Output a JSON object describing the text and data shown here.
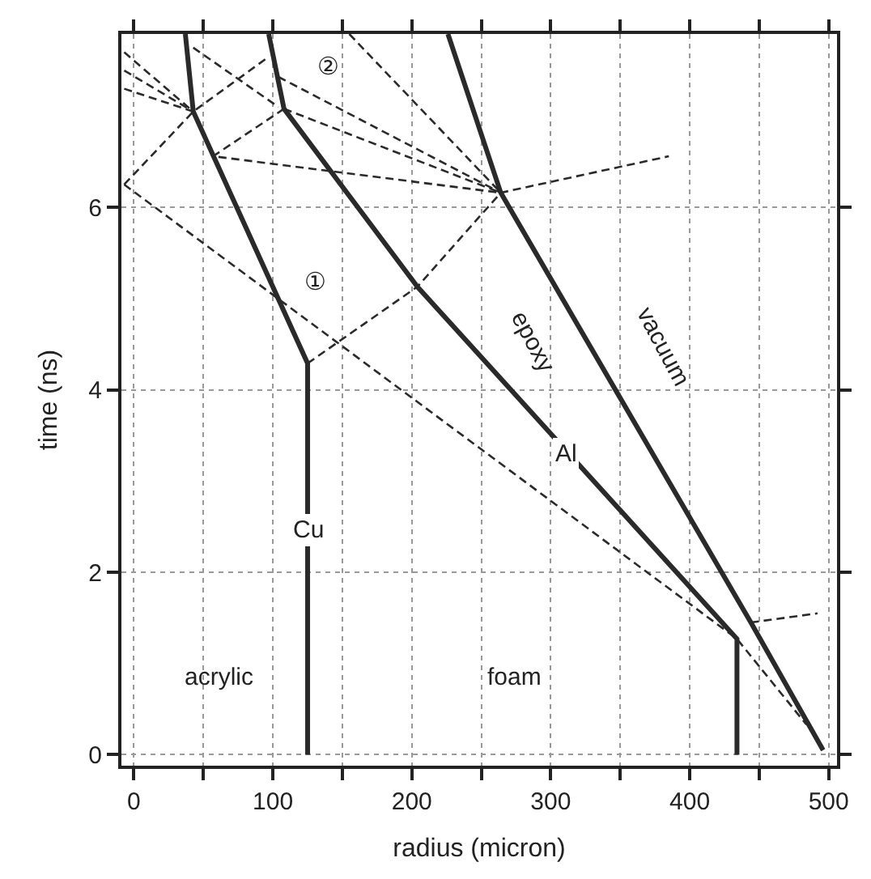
{
  "chart_data": {
    "type": "line",
    "xlabel": "radius (micron)",
    "ylabel": "time (ns)",
    "xlim": [
      -9,
      506
    ],
    "ylim": [
      -0.12,
      7.9
    ],
    "xticks": [
      0,
      {
        "value": 50,
        "label": null
      },
      100,
      {
        "value": 150,
        "label": null
      },
      200,
      {
        "value": 250,
        "label": null
      },
      300,
      {
        "value": 350,
        "label": null
      },
      400,
      {
        "value": 450,
        "label": null
      },
      500
    ],
    "yticks": [
      0,
      2,
      4,
      6
    ],
    "grid": true,
    "marker": "none",
    "series": [
      {
        "color": "#2a2a2a",
        "line_style": "solid",
        "x": [
          125,
          125,
          42.7,
          37
        ],
        "values": [
          0,
          4.29,
          7.05,
          7.9
        ]
      },
      {
        "color": "#2a2a2a",
        "line_style": "solid",
        "x": [
          434,
          434,
          204,
          108,
          97
        ],
        "values": [
          0,
          1.27,
          5.13,
          7.08,
          7.9
        ]
      },
      {
        "color": "#2a2a2a",
        "line_style": "solid",
        "x": [
          496,
          444,
          264,
          226
        ],
        "values": [
          0.05,
          1.45,
          6.16,
          7.9
        ]
      },
      {
        "color": "#2a2a2a",
        "line_style": "dashed",
        "x": [
          -7,
          434,
          484
        ],
        "values": [
          6.25,
          1.27,
          0.33
        ]
      },
      {
        "color": "#2a2a2a",
        "line_style": "dashed",
        "x": [
          125,
          204,
          264,
          385
        ],
        "values": [
          4.29,
          5.13,
          6.16,
          6.56
        ]
      },
      {
        "color": "#2a2a2a",
        "line_style": "dashed",
        "x": [
          444,
          492
        ],
        "values": [
          1.45,
          1.55
        ]
      },
      {
        "color": "#2a2a2a",
        "line_style": "dashed",
        "x": [
          -7,
          42.7,
          97
        ],
        "values": [
          6.25,
          7.05,
          7.65
        ]
      },
      {
        "color": "#2a2a2a",
        "line_style": "dashed",
        "x": [
          108,
          264
        ],
        "values": [
          7.08,
          6.16
        ]
      },
      {
        "color": "#2a2a2a",
        "line_style": "dashed",
        "x": [
          104,
          264
        ],
        "values": [
          7.43,
          6.16
        ]
      },
      {
        "color": "#2a2a2a",
        "line_style": "dashed",
        "x": [
          155,
          264
        ],
        "values": [
          7.9,
          6.16
        ]
      },
      {
        "color": "#2a2a2a",
        "line_style": "dashed",
        "x": [
          108,
          57,
          264
        ],
        "values": [
          7.08,
          6.56,
          6.16
        ]
      },
      {
        "color": "#2a2a2a",
        "line_style": "dashed",
        "x": [
          -7,
          42.7
        ],
        "values": [
          7.7,
          7.05
        ]
      },
      {
        "color": "#2a2a2a",
        "line_style": "dashed",
        "x": [
          -7,
          42.7
        ],
        "values": [
          7.5,
          7.05
        ]
      },
      {
        "color": "#2a2a2a",
        "line_style": "dashed",
        "x": [
          -7,
          42.7
        ],
        "values": [
          7.3,
          7.05
        ]
      },
      {
        "color": "#2a2a2a",
        "line_style": "dashed",
        "x": [
          42.7,
          104
        ],
        "values": [
          7.75,
          7.1
        ]
      }
    ],
    "annotations": [
      {
        "text": "Cu",
        "x": 125,
        "y": 2.46
      },
      {
        "text": "Al",
        "x": 311,
        "y": 3.3
      },
      "epoxy",
      "vacuum",
      "acrylic",
      {
        "text": "foam",
        "x": 273,
        "y": 0.84
      },
      {
        "text": "①",
        "x": 130,
        "y": 5.17
      },
      {
        "text": "②",
        "x": 140,
        "y": 7.54
      }
    ]
  }
}
